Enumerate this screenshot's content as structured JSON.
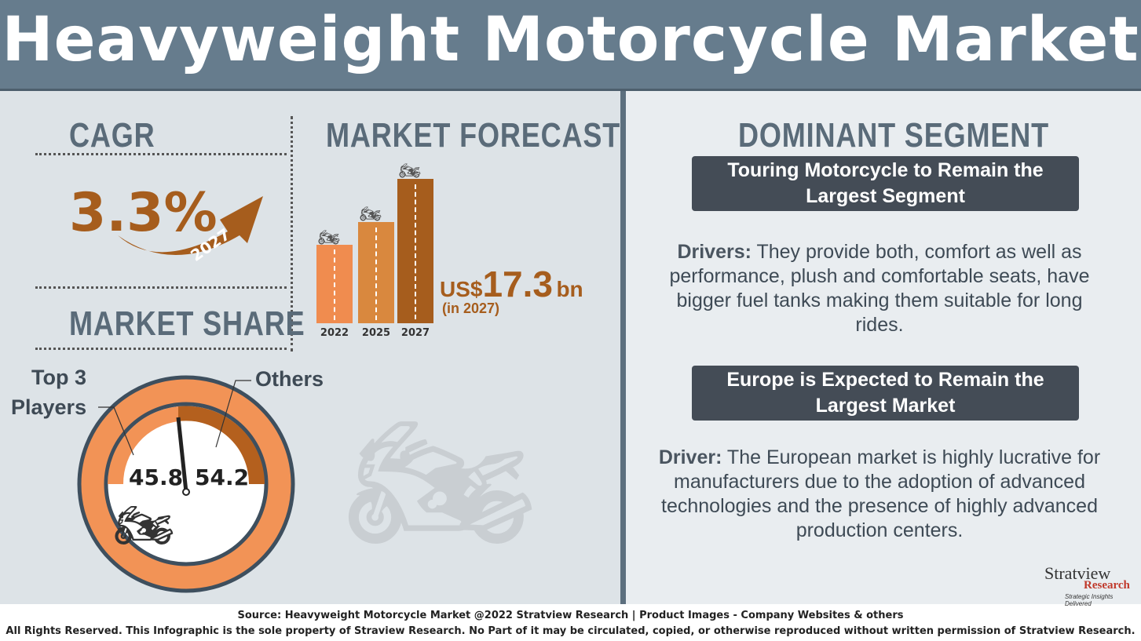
{
  "title": "Heavyweight Motorcycle Market",
  "cagr": {
    "heading": "CAGR",
    "value": "3.3%",
    "year": "2027"
  },
  "forecast": {
    "heading": "MARKET FORECAST",
    "categories": [
      "2022",
      "2025",
      "2027"
    ],
    "bar_colors": [
      "#f08c4f",
      "#d9883e",
      "#a65d1d"
    ],
    "value_prefix": "US$",
    "value": "17.3",
    "value_unit": "bn",
    "value_note": "(in 2027)"
  },
  "share": {
    "heading": "MARKET SHARE",
    "labels": {
      "top3_line1": "Top 3",
      "top3_line2": "Players",
      "others": "Others"
    },
    "values": {
      "top3": "45.8",
      "others": "54.2"
    }
  },
  "dominant": {
    "heading": "DOMINANT SEGMENT",
    "segment_box": "Touring Motorcycle to Remain the Largest Segment",
    "segment_driver_label": "Drivers:",
    "segment_driver_text": "They provide both, comfort as well as performance, plush and comfortable seats, have bigger fuel tanks making them suitable for long rides.",
    "market_box": "Europe is Expected to Remain the Largest Market",
    "market_driver_label": "Driver:",
    "market_driver_text": "The European market is highly lucrative for manufacturers due to the adoption of advanced technologies and the presence of highly advanced production centers."
  },
  "logo": {
    "name": "Stratview",
    "sub": "Research",
    "tagline": "Strategic Insights Delivered"
  },
  "footer": {
    "line1": "Source: Heavyweight Motorcycle Market @2022 Stratview Research | Product Images - Company Websites & others",
    "line2": "All Rights Reserved. This Infographic is the sole property of Straview Research. No Part of it may be circulated, copied, or otherwise reproduced without written permission of Stratview Research."
  }
}
